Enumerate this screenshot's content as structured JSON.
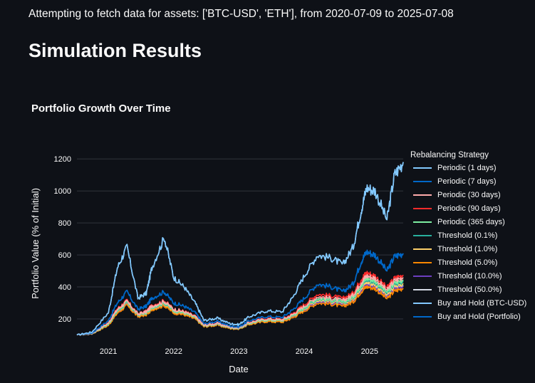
{
  "status_message": "Attempting to fetch data for assets: ['BTC-USD', 'ETH'], from 2020-07-09 to 2025-07-08",
  "page_title": "Simulation Results",
  "colors": {
    "background": "#0e1117",
    "gridline": "#30343c",
    "text": "#fafafa"
  },
  "chart_data": {
    "type": "line",
    "title": "Portfolio Growth Over Time",
    "xlabel": "Date",
    "ylabel": "Portfolio Value (% of Initial)",
    "xlim": [
      "2020-07-09",
      "2025-07-08"
    ],
    "ylim": [
      120,
      1250
    ],
    "x_tick_labels": [
      "2021",
      "2022",
      "2023",
      "2024",
      "2025"
    ],
    "y_ticks": [
      200,
      400,
      600,
      800,
      1000,
      1200
    ],
    "grid": true,
    "legend_title": "Rebalancing Strategy",
    "legend_position": "right",
    "x": [
      "2020-07-09",
      "2020-10-01",
      "2021-01-01",
      "2021-02-20",
      "2021-04-15",
      "2021-06-15",
      "2021-08-01",
      "2021-09-01",
      "2021-11-10",
      "2022-01-01",
      "2022-03-01",
      "2022-05-01",
      "2022-06-20",
      "2022-09-01",
      "2022-11-15",
      "2023-01-01",
      "2023-03-01",
      "2023-06-01",
      "2023-09-01",
      "2023-11-01",
      "2024-01-01",
      "2024-03-15",
      "2024-06-01",
      "2024-08-05",
      "2024-10-01",
      "2024-11-15",
      "2024-12-15",
      "2025-02-01",
      "2025-04-08",
      "2025-05-20",
      "2025-07-08"
    ],
    "series": [
      {
        "name": "Periodic (1 days)",
        "color": "#83c9ff",
        "values": [
          100,
          118,
          240,
          520,
          650,
          330,
          360,
          520,
          710,
          460,
          400,
          300,
          190,
          205,
          170,
          165,
          215,
          250,
          245,
          340,
          470,
          600,
          580,
          540,
          650,
          880,
          1020,
          1000,
          820,
          1100,
          1180
        ]
      },
      {
        "name": "Periodic (7 days)",
        "color": "#0068c9",
        "values": [
          100,
          112,
          190,
          300,
          370,
          260,
          280,
          330,
          370,
          300,
          280,
          240,
          170,
          185,
          155,
          150,
          190,
          215,
          210,
          260,
          330,
          420,
          400,
          370,
          420,
          560,
          620,
          600,
          500,
          590,
          610
        ]
      },
      {
        "name": "Periodic (30 days)",
        "color": "#ffabab",
        "values": [
          100,
          110,
          175,
          260,
          310,
          230,
          245,
          280,
          310,
          260,
          245,
          215,
          160,
          172,
          148,
          145,
          178,
          200,
          195,
          230,
          280,
          340,
          330,
          315,
          350,
          430,
          470,
          455,
          380,
          440,
          460
        ]
      },
      {
        "name": "Periodic (90 days)",
        "color": "#ff2b2b",
        "values": [
          100,
          110,
          178,
          265,
          315,
          232,
          248,
          285,
          315,
          262,
          248,
          218,
          162,
          174,
          150,
          146,
          180,
          204,
          198,
          236,
          290,
          355,
          345,
          328,
          362,
          450,
          490,
          470,
          395,
          455,
          475
        ]
      },
      {
        "name": "Periodic (365 days)",
        "color": "#7defa1",
        "values": [
          100,
          109,
          170,
          255,
          305,
          228,
          240,
          275,
          305,
          255,
          240,
          212,
          158,
          170,
          146,
          143,
          175,
          196,
          192,
          225,
          272,
          330,
          320,
          305,
          338,
          415,
          455,
          440,
          368,
          425,
          445
        ]
      },
      {
        "name": "Threshold (0.1%)",
        "color": "#29b09d",
        "values": [
          100,
          108,
          168,
          250,
          300,
          225,
          238,
          272,
          300,
          252,
          238,
          210,
          157,
          168,
          145,
          142,
          173,
          194,
          190,
          222,
          268,
          325,
          316,
          300,
          332,
          408,
          445,
          430,
          360,
          415,
          435
        ]
      },
      {
        "name": "Threshold (1.0%)",
        "color": "#ffd16a",
        "values": [
          100,
          108,
          166,
          246,
          296,
          222,
          235,
          268,
          296,
          248,
          235,
          207,
          155,
          166,
          144,
          141,
          171,
          191,
          187,
          219,
          262,
          318,
          310,
          295,
          325,
          398,
          432,
          418,
          350,
          403,
          422
        ]
      },
      {
        "name": "Threshold (5.0%)",
        "color": "#ff8700",
        "values": [
          100,
          107,
          160,
          236,
          284,
          214,
          226,
          258,
          284,
          238,
          226,
          200,
          151,
          161,
          140,
          138,
          166,
          184,
          180,
          209,
          250,
          300,
          292,
          278,
          306,
          372,
          402,
          390,
          326,
          374,
          392
        ]
      },
      {
        "name": "Threshold (10.0%)",
        "color": "#6d3fc0",
        "values": [
          100,
          107,
          162,
          240,
          288,
          217,
          229,
          262,
          288,
          242,
          229,
          203,
          153,
          163,
          142,
          139,
          168,
          187,
          183,
          213,
          255,
          308,
          300,
          285,
          314,
          382,
          414,
          401,
          335,
          386,
          404
        ]
      },
      {
        "name": "Threshold (50.0%)",
        "color": "#d5dae5",
        "values": [
          100,
          108,
          164,
          243,
          292,
          219,
          232,
          265,
          292,
          245,
          232,
          205,
          154,
          165,
          143,
          140,
          170,
          189,
          185,
          216,
          258,
          312,
          304,
          289,
          318,
          388,
          420,
          407,
          340,
          392,
          410
        ]
      },
      {
        "name": "Buy and Hold (BTC-USD)",
        "color": "#83c9ff",
        "values": [
          100,
          118,
          240,
          520,
          650,
          330,
          360,
          520,
          710,
          460,
          400,
          300,
          190,
          205,
          170,
          165,
          215,
          250,
          245,
          340,
          470,
          600,
          580,
          540,
          650,
          880,
          1020,
          1000,
          820,
          1100,
          1180
        ]
      },
      {
        "name": "Buy and Hold (Portfolio)",
        "color": "#0068c9",
        "values": [
          100,
          112,
          190,
          300,
          370,
          260,
          280,
          330,
          370,
          300,
          280,
          240,
          170,
          185,
          155,
          150,
          190,
          215,
          210,
          260,
          330,
          420,
          400,
          370,
          420,
          560,
          620,
          600,
          500,
          590,
          610
        ]
      }
    ]
  }
}
